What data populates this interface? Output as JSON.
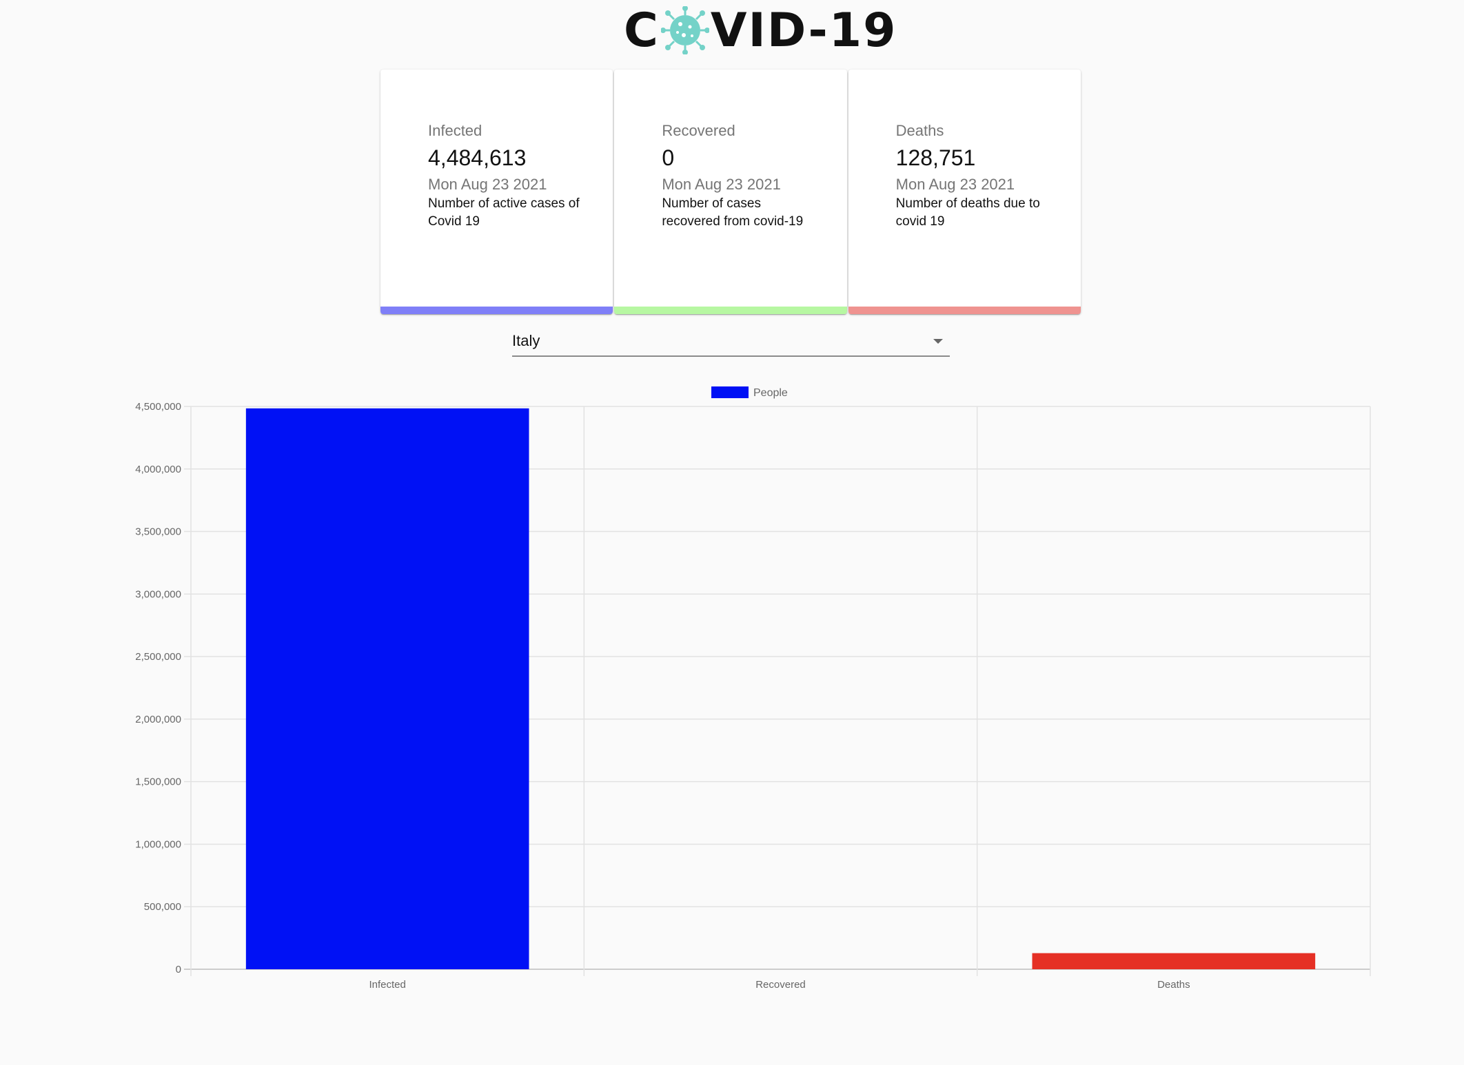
{
  "header": {
    "logo_text_left": "C",
    "logo_text_right": "VID-19",
    "logo_icon": "virus-icon",
    "logo_color": "#74d2c8"
  },
  "cards": [
    {
      "title": "Infected",
      "value": "4,484,613",
      "date": "Mon Aug 23 2021",
      "description": "Number of active cases of Covid 19",
      "color": "#7f7ff7"
    },
    {
      "title": "Recovered",
      "value": "0",
      "date": "Mon Aug 23 2021",
      "description": "Number of cases recovered from covid-19",
      "color": "#b7f7a2"
    },
    {
      "title": "Deaths",
      "value": "128,751",
      "date": "Mon Aug 23 2021",
      "description": "Number of deaths due to covid 19",
      "color": "#ef9390"
    }
  ],
  "country_select": {
    "selected": "Italy"
  },
  "chart_data": {
    "type": "bar",
    "categories": [
      "Infected",
      "Recovered",
      "Deaths"
    ],
    "series": [
      {
        "name": "People",
        "values": [
          4484613,
          0,
          128751
        ]
      }
    ],
    "bar_colors": [
      "#0011f5",
      "#00c853",
      "#e53025"
    ],
    "ylim": [
      0,
      4500000
    ],
    "yticks": [
      "0",
      "500,000",
      "1,000,000",
      "1,500,000",
      "2,000,000",
      "2,500,000",
      "3,000,000",
      "3,500,000",
      "4,000,000",
      "4,500,000"
    ],
    "grid": true,
    "legend": "top-center"
  }
}
